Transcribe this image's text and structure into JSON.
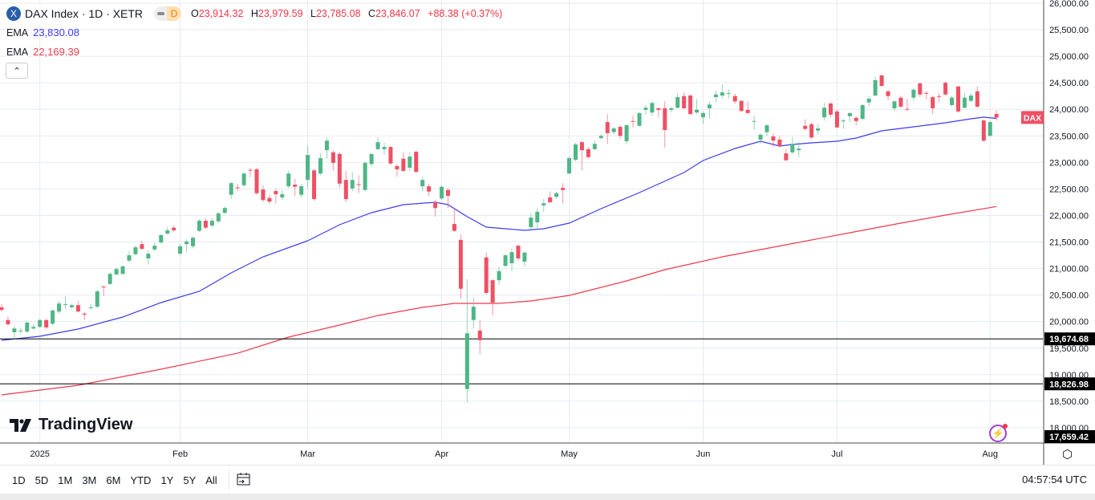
{
  "header": {
    "symbol_icon": "X",
    "title": "DAX Index · 1D · XETR",
    "badge": "D",
    "ohlc": {
      "o_label": "O",
      "o": "23,914.32",
      "h_label": "H",
      "h": "23,979.59",
      "l_label": "L",
      "l": "23,785.08",
      "c_label": "C",
      "c": "23,846.07",
      "change": "+88.38 (+0.37%)"
    },
    "ema1": {
      "label": "EMA",
      "value": "23,830.08"
    },
    "ema2": {
      "label": "EMA",
      "value": "22,169.39"
    },
    "collapse_icon": "chevron-up-icon"
  },
  "logo": "TradingView",
  "range_buttons": [
    "1D",
    "5D",
    "1M",
    "3M",
    "6M",
    "YTD",
    "1Y",
    "5Y",
    "All"
  ],
  "clock": "04:57:54 UTC",
  "colors": {
    "up": "#4fb685",
    "down": "#ef5064",
    "ema_fast": "#3b3bf5",
    "ema_slow": "#f0394a",
    "grid": "#e4ebf2"
  },
  "chart_data": {
    "type": "candlestick",
    "symbol": "DAX",
    "ylim": [
      17800,
      26000
    ],
    "y_ticks": [
      "26,000.00",
      "25,500.00",
      "25,000.00",
      "24,500.00",
      "24,000.00",
      "23,500.00",
      "23,000.00",
      "22,500.00",
      "22,000.00",
      "21,500.00",
      "21,000.00",
      "20,500.00",
      "20,000.00",
      "19,500.00",
      "19,000.00",
      "18,500.00",
      "18,000.00"
    ],
    "y_tick_values": [
      26000,
      25500,
      25000,
      24500,
      24000,
      23500,
      23000,
      22500,
      22000,
      21500,
      21000,
      20500,
      20000,
      19500,
      19000,
      18500,
      18000
    ],
    "x_labels": [
      {
        "label": "2025",
        "bar": 6
      },
      {
        "label": "Feb",
        "bar": 28
      },
      {
        "label": "Mar",
        "bar": 48
      },
      {
        "label": "Apr",
        "bar": 69
      },
      {
        "label": "May",
        "bar": 89
      },
      {
        "label": "Jun",
        "bar": 110
      },
      {
        "label": "Jul",
        "bar": 131
      },
      {
        "label": "Aug",
        "bar": 155
      }
    ],
    "horizontal_lines": [
      {
        "value": 19674.68,
        "label": "19,674.68"
      },
      {
        "value": 18826.98,
        "label": "18,826.98"
      }
    ],
    "bottom_price_label": "17,659.42",
    "last_price_tag": "DAX",
    "candles_ohlc": [
      [
        20270,
        20330,
        20190,
        20220
      ],
      [
        20030,
        20100,
        19920,
        19950
      ],
      [
        19800,
        19920,
        19660,
        19870
      ],
      [
        19820,
        19890,
        19770,
        19830
      ],
      [
        19810,
        20010,
        19790,
        19980
      ],
      [
        19870,
        19950,
        19850,
        19900
      ],
      [
        19900,
        20050,
        19880,
        20030
      ],
      [
        20030,
        20050,
        19850,
        19890
      ],
      [
        19960,
        20230,
        19930,
        20210
      ],
      [
        20190,
        20390,
        20150,
        20340
      ],
      [
        20320,
        20480,
        20240,
        20330
      ],
      [
        20270,
        20340,
        20240,
        20310
      ],
      [
        20310,
        20390,
        20170,
        20190
      ],
      [
        20150,
        20180,
        20030,
        20130
      ],
      [
        20260,
        20340,
        20220,
        20270
      ],
      [
        20280,
        20600,
        20250,
        20570
      ],
      [
        20660,
        20680,
        20480,
        20650
      ],
      [
        20710,
        20930,
        20690,
        20900
      ],
      [
        20890,
        21020,
        20870,
        20990
      ],
      [
        20900,
        21070,
        20880,
        21040
      ],
      [
        21150,
        21330,
        21120,
        21250
      ],
      [
        21270,
        21430,
        21250,
        21400
      ],
      [
        21460,
        21520,
        21350,
        21370
      ],
      [
        21190,
        21340,
        21080,
        21280
      ],
      [
        21360,
        21490,
        21330,
        21430
      ],
      [
        21490,
        21650,
        21470,
        21630
      ],
      [
        21660,
        21780,
        21640,
        21720
      ],
      [
        21770,
        21810,
        21690,
        21720
      ],
      [
        21280,
        21460,
        21250,
        21420
      ],
      [
        21460,
        21550,
        21310,
        21510
      ],
      [
        21420,
        21600,
        21380,
        21580
      ],
      [
        21710,
        21930,
        21690,
        21900
      ],
      [
        21900,
        21950,
        21740,
        21770
      ],
      [
        21810,
        21950,
        21780,
        21900
      ],
      [
        21890,
        22060,
        21860,
        22040
      ],
      [
        22050,
        22170,
        22030,
        22140
      ],
      [
        22390,
        22630,
        22310,
        22610
      ],
      [
        22530,
        22600,
        22460,
        22520
      ],
      [
        22570,
        22820,
        22540,
        22790
      ],
      [
        22860,
        22890,
        22720,
        22850
      ],
      [
        22870,
        22900,
        22390,
        22420
      ],
      [
        22490,
        22570,
        22260,
        22290
      ],
      [
        22330,
        22380,
        22220,
        22260
      ],
      [
        22460,
        22500,
        22230,
        22400
      ],
      [
        22340,
        22480,
        22290,
        22400
      ],
      [
        22550,
        22840,
        22520,
        22790
      ],
      [
        22580,
        22690,
        22370,
        22540
      ],
      [
        22390,
        22600,
        22330,
        22550
      ],
      [
        22670,
        23310,
        22520,
        23140
      ],
      [
        22850,
        22880,
        22280,
        22310
      ],
      [
        22790,
        23170,
        22760,
        23080
      ],
      [
        23230,
        23470,
        23070,
        23410
      ],
      [
        23190,
        23230,
        22850,
        22990
      ],
      [
        23160,
        23190,
        22520,
        22600
      ],
      [
        22670,
        22840,
        22250,
        22310
      ],
      [
        22510,
        22810,
        22460,
        22670
      ],
      [
        22590,
        22760,
        22420,
        22580
      ],
      [
        22480,
        23020,
        22450,
        22990
      ],
      [
        22970,
        23160,
        22930,
        23160
      ],
      [
        23250,
        23470,
        23230,
        23380
      ],
      [
        23250,
        23370,
        23140,
        23290
      ],
      [
        23290,
        23310,
        22950,
        22980
      ],
      [
        22930,
        22960,
        22730,
        22870
      ],
      [
        23070,
        23190,
        22820,
        22840
      ],
      [
        22900,
        23190,
        22840,
        23110
      ],
      [
        23200,
        23220,
        22810,
        22820
      ],
      [
        22550,
        22730,
        22460,
        22670
      ],
      [
        22550,
        22600,
        22370,
        22450
      ],
      [
        22250,
        22300,
        21980,
        22140
      ],
      [
        22320,
        22570,
        22290,
        22540
      ],
      [
        22480,
        22520,
        22140,
        22370
      ],
      [
        21840,
        22140,
        21690,
        21710
      ],
      [
        21540,
        21640,
        20430,
        20620
      ],
      [
        18730,
        20800,
        18480,
        19780
      ],
      [
        20030,
        20460,
        19870,
        20280
      ],
      [
        19830,
        20030,
        19380,
        19650
      ],
      [
        21210,
        21300,
        20520,
        20540
      ],
      [
        20780,
        20800,
        20120,
        20360
      ],
      [
        20780,
        21040,
        20690,
        20950
      ],
      [
        21050,
        21270,
        21030,
        21250
      ],
      [
        21100,
        21370,
        20950,
        21310
      ],
      [
        21430,
        21450,
        21150,
        21190
      ],
      [
        21130,
        21320,
        21040,
        21300
      ],
      [
        21780,
        22040,
        21740,
        21960
      ],
      [
        21870,
        22140,
        21740,
        22070
      ],
      [
        22190,
        22310,
        22070,
        22230
      ],
      [
        22340,
        22450,
        22230,
        22250
      ],
      [
        22350,
        22450,
        22310,
        22420
      ],
      [
        22520,
        22610,
        22230,
        22480
      ],
      [
        22790,
        23110,
        22780,
        23080
      ],
      [
        23050,
        23370,
        23020,
        23340
      ],
      [
        23380,
        23410,
        22850,
        23230
      ],
      [
        23250,
        23290,
        23070,
        23100
      ],
      [
        23250,
        23410,
        23230,
        23350
      ],
      [
        23460,
        23530,
        23430,
        23500
      ],
      [
        23760,
        23910,
        23350,
        23550
      ],
      [
        23570,
        23670,
        23530,
        23640
      ],
      [
        23670,
        23700,
        23440,
        23500
      ],
      [
        23400,
        23720,
        23340,
        23700
      ],
      [
        23780,
        23880,
        23660,
        23770
      ],
      [
        23690,
        23950,
        23670,
        23930
      ],
      [
        23990,
        24080,
        23900,
        24030
      ],
      [
        23940,
        24150,
        23870,
        24120
      ],
      [
        24020,
        24040,
        23840,
        23990
      ],
      [
        24020,
        24160,
        23280,
        23610
      ],
      [
        23990,
        24050,
        23940,
        24020
      ],
      [
        24030,
        24310,
        24020,
        24230
      ],
      [
        24250,
        24320,
        24000,
        24020
      ],
      [
        24260,
        24280,
        23900,
        23910
      ],
      [
        23940,
        24190,
        23910,
        23990
      ],
      [
        23850,
        23960,
        23730,
        23930
      ],
      [
        24020,
        24140,
        23820,
        24090
      ],
      [
        24230,
        24350,
        24130,
        24280
      ],
      [
        24260,
        24470,
        24210,
        24320
      ],
      [
        24300,
        24380,
        24210,
        24310
      ],
      [
        24250,
        24290,
        24100,
        24150
      ],
      [
        24160,
        24170,
        23950,
        23970
      ],
      [
        23990,
        24150,
        23920,
        23930
      ],
      [
        23770,
        23880,
        23610,
        23780
      ],
      [
        23430,
        23550,
        23350,
        23520
      ],
      [
        23570,
        23720,
        23500,
        23700
      ],
      [
        23490,
        23550,
        23290,
        23410
      ],
      [
        23430,
        23500,
        23280,
        23310
      ],
      [
        23170,
        23250,
        23030,
        23040
      ],
      [
        23190,
        23480,
        23160,
        23350
      ],
      [
        23230,
        23380,
        23100,
        23260
      ],
      [
        23690,
        23810,
        23600,
        23630
      ],
      [
        23720,
        23750,
        23440,
        23470
      ],
      [
        23600,
        23720,
        23520,
        23640
      ],
      [
        23850,
        24120,
        23790,
        24030
      ],
      [
        24110,
        24130,
        23850,
        23900
      ],
      [
        23960,
        24000,
        23650,
        23660
      ],
      [
        23790,
        23820,
        23630,
        23790
      ],
      [
        23870,
        23940,
        23760,
        23930
      ],
      [
        23840,
        23870,
        23700,
        23780
      ],
      [
        23820,
        24100,
        23800,
        24080
      ],
      [
        24130,
        24250,
        24060,
        24200
      ],
      [
        24260,
        24610,
        24250,
        24550
      ],
      [
        24640,
        24650,
        24430,
        24440
      ],
      [
        24340,
        24370,
        24170,
        24250
      ],
      [
        24020,
        24170,
        23970,
        24150
      ],
      [
        24220,
        24260,
        24030,
        24050
      ],
      [
        24010,
        24200,
        23970,
        24000
      ],
      [
        24220,
        24400,
        24170,
        24370
      ],
      [
        24490,
        24500,
        24230,
        24280
      ],
      [
        24310,
        24340,
        24190,
        24300
      ],
      [
        24230,
        24260,
        23910,
        24020
      ],
      [
        24250,
        24310,
        24130,
        24240
      ],
      [
        24500,
        24530,
        24260,
        24280
      ],
      [
        24080,
        24250,
        24050,
        24220
      ],
      [
        24430,
        24440,
        23940,
        23960
      ],
      [
        24030,
        24310,
        24020,
        24220
      ],
      [
        24160,
        24310,
        24140,
        24260
      ],
      [
        24340,
        24430,
        24030,
        24050
      ],
      [
        23790,
        23810,
        23380,
        23410
      ],
      [
        23500,
        23780,
        23490,
        23760
      ],
      [
        23914.32,
        23979.59,
        23785.08,
        23846.07
      ]
    ],
    "series": [
      {
        "name": "EMA (fast)",
        "points": [
          [
            0,
            19648
          ],
          [
            6,
            19723
          ],
          [
            12,
            19859
          ],
          [
            19,
            20086
          ],
          [
            25,
            20358
          ],
          [
            31,
            20570
          ],
          [
            36,
            20918
          ],
          [
            41,
            21221
          ],
          [
            48,
            21523
          ],
          [
            53,
            21826
          ],
          [
            58,
            22052
          ],
          [
            63,
            22204
          ],
          [
            68,
            22249
          ],
          [
            70,
            22204
          ],
          [
            73,
            21977
          ],
          [
            76,
            21780
          ],
          [
            82,
            21720
          ],
          [
            85,
            21750
          ],
          [
            89,
            21856
          ],
          [
            94,
            22128
          ],
          [
            100,
            22430
          ],
          [
            107,
            22809
          ],
          [
            110,
            23036
          ],
          [
            115,
            23262
          ],
          [
            119,
            23399
          ],
          [
            122,
            23308
          ],
          [
            124,
            23338
          ],
          [
            127,
            23368
          ],
          [
            131,
            23399
          ],
          [
            134,
            23459
          ],
          [
            138,
            23595
          ],
          [
            143,
            23671
          ],
          [
            148,
            23746
          ],
          [
            152,
            23822
          ],
          [
            154,
            23852
          ],
          [
            156,
            23830.08
          ]
        ]
      },
      {
        "name": "EMA (slow)",
        "points": [
          [
            0,
            18619
          ],
          [
            12,
            18800
          ],
          [
            25,
            19103
          ],
          [
            37,
            19405
          ],
          [
            45,
            19708
          ],
          [
            53,
            19935
          ],
          [
            59,
            20116
          ],
          [
            66,
            20268
          ],
          [
            71,
            20343
          ],
          [
            78,
            20343
          ],
          [
            83,
            20389
          ],
          [
            89,
            20494
          ],
          [
            98,
            20767
          ],
          [
            104,
            20979
          ],
          [
            113,
            21221
          ],
          [
            123,
            21448
          ],
          [
            133,
            21674
          ],
          [
            141,
            21856
          ],
          [
            148,
            22007
          ],
          [
            156,
            22169.39
          ]
        ]
      }
    ]
  }
}
